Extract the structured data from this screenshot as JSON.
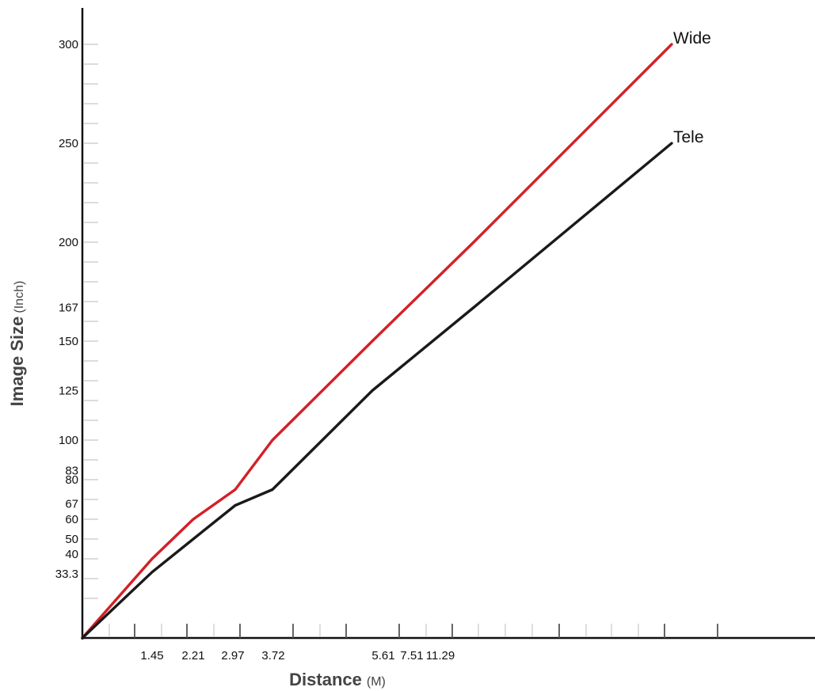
{
  "chart_data": {
    "type": "line",
    "xlabel": "Distance",
    "xlabel_unit": "(M)",
    "ylabel": "Image Size",
    "ylabel_unit": "(Inch)",
    "x_tick_labels": [
      "1.45",
      "2.21",
      "2.97",
      "3.72",
      "5.61",
      "7.51",
      "11.29"
    ],
    "y_tick_labels": [
      "33.3",
      "40",
      "50",
      "60",
      "67",
      "80",
      "83",
      "100",
      "125",
      "150",
      "167",
      "200",
      "250",
      "300"
    ],
    "y_ticks": [
      33.3,
      40,
      50,
      60,
      67,
      80,
      83,
      100,
      125,
      150,
      167,
      200,
      250,
      300
    ],
    "ylim": [
      -20,
      320
    ],
    "grid": false,
    "series": [
      {
        "name": "Wide",
        "color": "#d42027",
        "x": [
          0,
          1.45,
          2.21,
          2.97,
          3.72,
          5.61,
          7.51,
          11.29
        ],
        "y": [
          0,
          40,
          60,
          75,
          100,
          150,
          200,
          300
        ]
      },
      {
        "name": "Tele",
        "color": "#1a1a1a",
        "x": [
          0,
          1.45,
          2.21,
          2.97,
          3.72,
          5.61,
          7.51,
          11.29
        ],
        "y": [
          0,
          33.3,
          50,
          67,
          75,
          125,
          167,
          250
        ]
      }
    ]
  }
}
